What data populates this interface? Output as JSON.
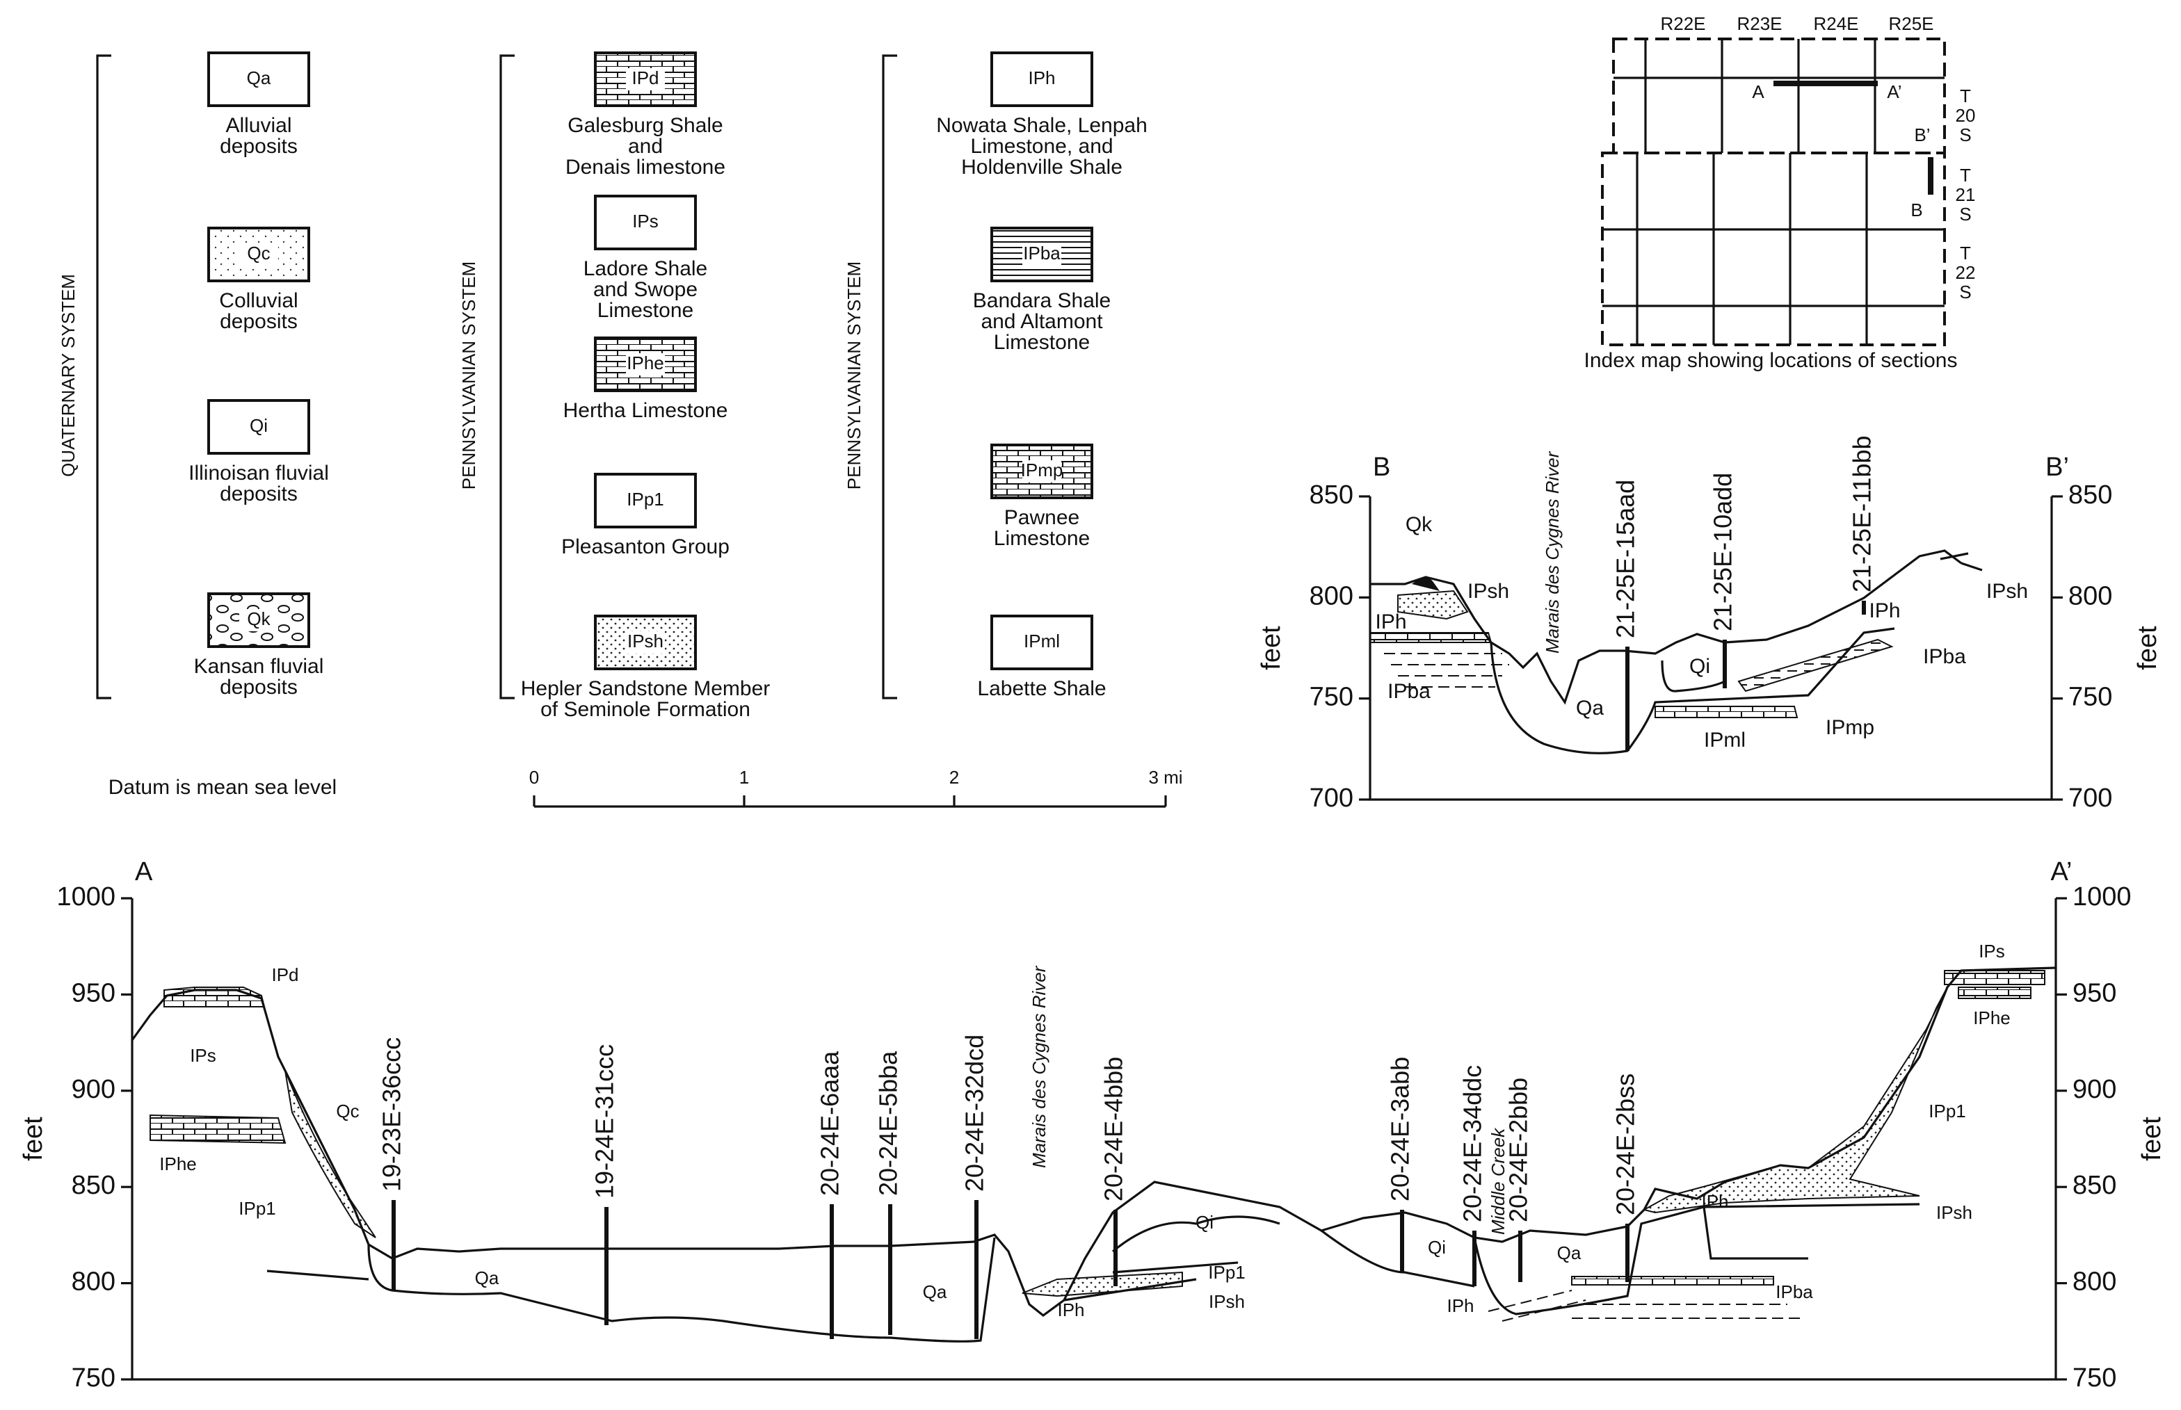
{
  "legend": {
    "columns": [
      {
        "system": "QUATERNARY SYSTEM",
        "units": [
          {
            "symbol": "Qa",
            "label": [
              "Alluvial",
              "deposits"
            ]
          },
          {
            "symbol": "Qc",
            "label": [
              "Colluvial",
              "deposits"
            ]
          },
          {
            "symbol": "Qi",
            "label": [
              "Illinoisan fluvial",
              "deposits"
            ]
          },
          {
            "symbol": "Qk",
            "label": [
              "Kansan fluvial",
              "deposits"
            ]
          }
        ]
      },
      {
        "system": "PENNSYLVANIAN SYSTEM",
        "units": [
          {
            "symbol": "IPd",
            "label": [
              "Galesburg Shale",
              "and",
              "Denais limestone"
            ]
          },
          {
            "symbol": "IPs",
            "label": [
              "Ladore Shale",
              "and Swope",
              "Limestone"
            ]
          },
          {
            "symbol": "IPhe",
            "label": [
              "Hertha Limestone"
            ]
          },
          {
            "symbol": "IPp1",
            "label": [
              "Pleasanton Group"
            ]
          },
          {
            "symbol": "IPsh",
            "label": [
              "Hepler Sandstone Member",
              "of Seminole Formation"
            ]
          }
        ]
      },
      {
        "system": "PENNSYLVANIAN SYSTEM",
        "units": [
          {
            "symbol": "IPh",
            "label": [
              "Nowata Shale, Lenpah",
              "Limestone, and",
              "Holdenville Shale"
            ]
          },
          {
            "symbol": "IPba",
            "label": [
              "Bandara Shale",
              "and Altamont",
              "Limestone"
            ]
          },
          {
            "symbol": "IPmp",
            "label": [
              "Pawnee",
              "Limestone"
            ]
          },
          {
            "symbol": "IPml",
            "label": [
              "Labette Shale"
            ]
          }
        ]
      }
    ],
    "datum": "Datum is mean sea level"
  },
  "scale_bar": {
    "labels": [
      "0",
      "1",
      "2",
      "3 mi"
    ]
  },
  "index_map": {
    "ranges": [
      "R22E",
      "R23E",
      "R24E",
      "R25E"
    ],
    "townships": [
      [
        "T",
        "20",
        "S"
      ],
      [
        "T",
        "21",
        "S"
      ],
      [
        "T",
        "22",
        "S"
      ]
    ],
    "points": [
      "A",
      "A’",
      "B’",
      "B"
    ],
    "caption": "Index map showing locations of sections"
  },
  "section_b": {
    "left": "B",
    "right": "B’",
    "y_label": "feet",
    "yticks": [
      850,
      800,
      750,
      700
    ],
    "river": "Marais des Cygnes River",
    "wells": [
      "21-25E-15aad",
      "21-25E-10add",
      "21-25E-11bbb"
    ],
    "units": [
      "Qk",
      "IPsh",
      "IPh",
      "IPba",
      "Qa",
      "Qi",
      "IPml",
      "IPmp",
      "IPh",
      "IPba",
      "IPsh"
    ]
  },
  "section_a": {
    "left": "A",
    "right": "A’",
    "y_label": "feet",
    "yticks": [
      1000,
      950,
      900,
      850,
      800,
      750
    ],
    "rivers": [
      "Marais des Cygnes River",
      "Middle Creek"
    ],
    "wells": [
      "19-23E-36ccc",
      "19-24E-31ccc",
      "20-24E-6aaa",
      "20-24E-5bba",
      "20-24E-32dcd",
      "20-24E-4bbb",
      "20-24E-3abb",
      "20-24E-34ddc",
      "20-24E-2bbb",
      "20-24E-2bss"
    ],
    "units": [
      "IPd",
      "IPs",
      "Qc",
      "IPhe",
      "IPp1",
      "Qa",
      "Qa",
      "IPh",
      "IPp1",
      "IPsh",
      "Qi",
      "Qi",
      "Qa",
      "IPh",
      "IPh",
      "IPba",
      "IPs",
      "IPhe",
      "IPp1",
      "IPsh"
    ]
  }
}
